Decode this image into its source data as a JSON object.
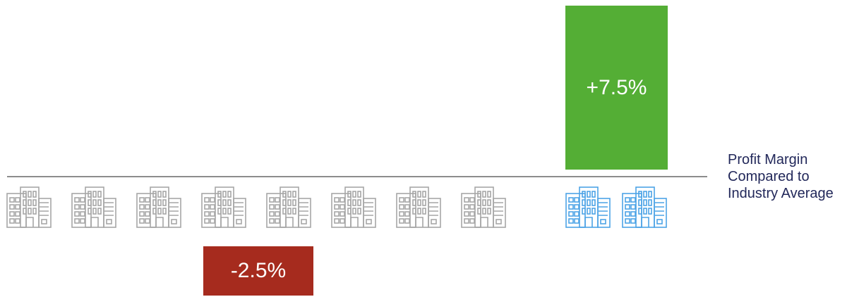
{
  "chart_data": {
    "type": "bar",
    "title": "",
    "legend_lines": [
      "Profit Margin",
      "Compared to",
      "Industry Average"
    ],
    "companies": [
      {
        "highlight": false
      },
      {
        "highlight": false
      },
      {
        "highlight": false
      },
      {
        "highlight": false
      },
      {
        "highlight": false
      },
      {
        "highlight": false
      },
      {
        "highlight": false
      },
      {
        "highlight": false
      },
      {
        "highlight": true
      },
      {
        "highlight": true
      }
    ],
    "bars": [
      {
        "label": "+7.5%",
        "value": 7.5,
        "color": "#54ae35"
      },
      {
        "label": "-2.5%",
        "value": -2.5,
        "color": "#a62b1e"
      }
    ],
    "colors": {
      "baseline": "#8c8c8c",
      "building_default": "#a6a6a6",
      "building_highlight": "#4ca3e6",
      "legend_text": "#22285a"
    }
  }
}
